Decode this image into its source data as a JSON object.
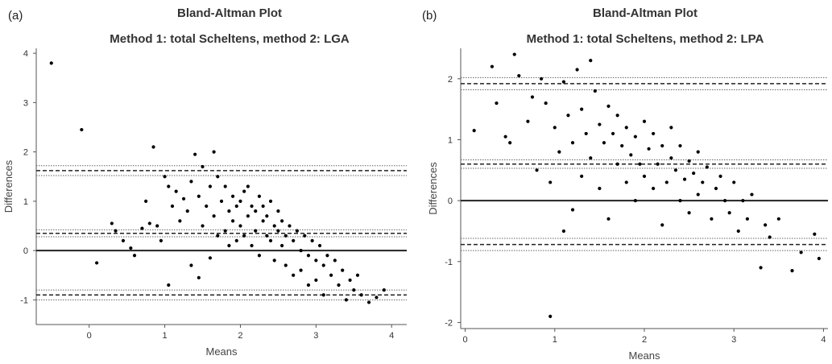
{
  "chart_data": [
    {
      "type": "scatter",
      "panel_label": "(a)",
      "title": "Bland-Altman Plot",
      "subtitle": "Method 1: total Scheltens, method 2: LGA",
      "xlabel": "Means",
      "ylabel": "Differences",
      "xlim": [
        -0.7,
        4.2
      ],
      "ylim": [
        -1.5,
        4.1
      ],
      "xticks": [
        0,
        1,
        2,
        3,
        4
      ],
      "yticks": [
        -1,
        0,
        1,
        2,
        3,
        4
      ],
      "zero_line": 0,
      "mean_line": 0.35,
      "mean_ci": [
        0.28,
        0.42
      ],
      "upper_loa": 1.62,
      "upper_loa_ci": [
        1.52,
        1.72
      ],
      "lower_loa": -0.9,
      "lower_loa_ci": [
        -1.0,
        -0.8
      ],
      "points": [
        [
          -0.5,
          3.8
        ],
        [
          -0.1,
          2.45
        ],
        [
          0.1,
          -0.25
        ],
        [
          0.3,
          0.55
        ],
        [
          0.35,
          0.4
        ],
        [
          0.45,
          0.2
        ],
        [
          0.55,
          0.05
        ],
        [
          0.6,
          -0.1
        ],
        [
          0.7,
          0.45
        ],
        [
          0.75,
          1.0
        ],
        [
          0.8,
          0.55
        ],
        [
          0.85,
          2.1
        ],
        [
          0.9,
          0.5
        ],
        [
          0.95,
          0.2
        ],
        [
          1.0,
          1.5
        ],
        [
          1.05,
          1.3
        ],
        [
          1.05,
          -0.7
        ],
        [
          1.1,
          0.9
        ],
        [
          1.15,
          1.2
        ],
        [
          1.2,
          0.6
        ],
        [
          1.25,
          1.05
        ],
        [
          1.3,
          0.8
        ],
        [
          1.35,
          1.4
        ],
        [
          1.35,
          -0.3
        ],
        [
          1.4,
          1.95
        ],
        [
          1.45,
          1.1
        ],
        [
          1.45,
          -0.55
        ],
        [
          1.5,
          0.5
        ],
        [
          1.5,
          1.7
        ],
        [
          1.55,
          0.9
        ],
        [
          1.6,
          1.3
        ],
        [
          1.6,
          -0.15
        ],
        [
          1.65,
          2.0
        ],
        [
          1.65,
          0.7
        ],
        [
          1.7,
          1.5
        ],
        [
          1.7,
          0.3
        ],
        [
          1.75,
          1.0
        ],
        [
          1.8,
          0.4
        ],
        [
          1.8,
          1.3
        ],
        [
          1.85,
          0.8
        ],
        [
          1.85,
          0.1
        ],
        [
          1.9,
          1.1
        ],
        [
          1.9,
          0.6
        ],
        [
          1.95,
          0.9
        ],
        [
          1.95,
          0.2
        ],
        [
          2.0,
          1.0
        ],
        [
          2.0,
          0.5
        ],
        [
          2.05,
          1.2
        ],
        [
          2.05,
          0.3
        ],
        [
          2.1,
          0.7
        ],
        [
          2.1,
          1.3
        ],
        [
          2.15,
          0.9
        ],
        [
          2.15,
          0.1
        ],
        [
          2.2,
          0.8
        ],
        [
          2.2,
          0.4
        ],
        [
          2.25,
          1.1
        ],
        [
          2.25,
          -0.1
        ],
        [
          2.3,
          0.6
        ],
        [
          2.3,
          0.9
        ],
        [
          2.35,
          0.3
        ],
        [
          2.35,
          0.7
        ],
        [
          2.4,
          1.0
        ],
        [
          2.4,
          0.2
        ],
        [
          2.45,
          0.5
        ],
        [
          2.45,
          -0.2
        ],
        [
          2.5,
          0.8
        ],
        [
          2.5,
          0.4
        ],
        [
          2.55,
          0.1
        ],
        [
          2.55,
          0.6
        ],
        [
          2.6,
          0.3
        ],
        [
          2.6,
          -0.3
        ],
        [
          2.65,
          0.5
        ],
        [
          2.7,
          0.2
        ],
        [
          2.7,
          -0.5
        ],
        [
          2.75,
          0.4
        ],
        [
          2.8,
          0.0
        ],
        [
          2.8,
          -0.4
        ],
        [
          2.85,
          0.3
        ],
        [
          2.9,
          -0.1
        ],
        [
          2.9,
          -0.7
        ],
        [
          2.95,
          0.2
        ],
        [
          3.0,
          -0.2
        ],
        [
          3.0,
          -0.6
        ],
        [
          3.05,
          0.1
        ],
        [
          3.1,
          -0.3
        ],
        [
          3.1,
          -0.9
        ],
        [
          3.15,
          -0.1
        ],
        [
          3.2,
          -0.5
        ],
        [
          3.25,
          -0.2
        ],
        [
          3.3,
          -0.7
        ],
        [
          3.35,
          -0.4
        ],
        [
          3.4,
          -1.0
        ],
        [
          3.45,
          -0.6
        ],
        [
          3.5,
          -0.8
        ],
        [
          3.55,
          -0.5
        ],
        [
          3.6,
          -0.9
        ],
        [
          3.7,
          -1.05
        ],
        [
          3.8,
          -0.95
        ],
        [
          3.9,
          -0.8
        ]
      ]
    },
    {
      "type": "scatter",
      "panel_label": "(b)",
      "title": "Bland-Altman Plot",
      "subtitle": "Method 1: total Scheltens, method 2: LPA",
      "xlabel": "Means",
      "ylabel": "Differences",
      "xlim": [
        -0.05,
        4.05
      ],
      "ylim": [
        -2.1,
        2.5
      ],
      "xticks": [
        0,
        1,
        2,
        3,
        4
      ],
      "yticks": [
        -2,
        -1,
        0,
        1,
        2
      ],
      "zero_line": 0,
      "mean_line": 0.6,
      "mean_ci": [
        0.53,
        0.67
      ],
      "upper_loa": 1.92,
      "upper_loa_ci": [
        1.82,
        2.02
      ],
      "lower_loa": -0.72,
      "lower_loa_ci": [
        -0.82,
        -0.62
      ],
      "points": [
        [
          0.1,
          1.15
        ],
        [
          0.3,
          2.2
        ],
        [
          0.35,
          1.6
        ],
        [
          0.45,
          1.05
        ],
        [
          0.5,
          0.95
        ],
        [
          0.55,
          2.4
        ],
        [
          0.6,
          2.05
        ],
        [
          0.7,
          1.3
        ],
        [
          0.75,
          1.7
        ],
        [
          0.8,
          0.5
        ],
        [
          0.85,
          2.0
        ],
        [
          0.9,
          1.6
        ],
        [
          0.95,
          0.3
        ],
        [
          0.95,
          -1.9
        ],
        [
          1.0,
          1.2
        ],
        [
          1.05,
          0.8
        ],
        [
          1.1,
          1.95
        ],
        [
          1.1,
          -0.5
        ],
        [
          1.15,
          1.4
        ],
        [
          1.2,
          0.95
        ],
        [
          1.2,
          -0.15
        ],
        [
          1.25,
          2.15
        ],
        [
          1.3,
          1.5
        ],
        [
          1.3,
          0.4
        ],
        [
          1.35,
          1.1
        ],
        [
          1.4,
          2.3
        ],
        [
          1.4,
          0.7
        ],
        [
          1.45,
          1.8
        ],
        [
          1.5,
          1.25
        ],
        [
          1.5,
          0.2
        ],
        [
          1.55,
          0.95
        ],
        [
          1.6,
          1.55
        ],
        [
          1.6,
          -0.3
        ],
        [
          1.65,
          1.1
        ],
        [
          1.7,
          0.6
        ],
        [
          1.7,
          1.4
        ],
        [
          1.75,
          0.9
        ],
        [
          1.8,
          1.2
        ],
        [
          1.8,
          0.3
        ],
        [
          1.85,
          0.75
        ],
        [
          1.9,
          1.05
        ],
        [
          1.9,
          0.0
        ],
        [
          1.95,
          0.6
        ],
        [
          2.0,
          1.3
        ],
        [
          2.0,
          0.4
        ],
        [
          2.05,
          0.85
        ],
        [
          2.1,
          0.2
        ],
        [
          2.1,
          1.1
        ],
        [
          2.15,
          0.6
        ],
        [
          2.2,
          -0.4
        ],
        [
          2.2,
          0.9
        ],
        [
          2.25,
          0.3
        ],
        [
          2.3,
          0.7
        ],
        [
          2.3,
          1.2
        ],
        [
          2.35,
          0.5
        ],
        [
          2.4,
          0.0
        ],
        [
          2.4,
          0.9
        ],
        [
          2.45,
          0.35
        ],
        [
          2.5,
          0.65
        ],
        [
          2.5,
          -0.2
        ],
        [
          2.55,
          0.45
        ],
        [
          2.6,
          0.8
        ],
        [
          2.6,
          0.1
        ],
        [
          2.65,
          0.3
        ],
        [
          2.7,
          0.55
        ],
        [
          2.75,
          -0.3
        ],
        [
          2.8,
          0.2
        ],
        [
          2.85,
          0.4
        ],
        [
          2.9,
          0.0
        ],
        [
          2.95,
          -0.2
        ],
        [
          3.0,
          0.3
        ],
        [
          3.05,
          -0.5
        ],
        [
          3.1,
          0.0
        ],
        [
          3.15,
          -0.3
        ],
        [
          3.2,
          0.1
        ],
        [
          3.3,
          -1.1
        ],
        [
          3.35,
          -0.4
        ],
        [
          3.4,
          -0.6
        ],
        [
          3.5,
          -0.3
        ],
        [
          3.65,
          -1.15
        ],
        [
          3.75,
          -0.85
        ],
        [
          3.9,
          -0.55
        ],
        [
          3.95,
          -0.95
        ]
      ]
    }
  ]
}
